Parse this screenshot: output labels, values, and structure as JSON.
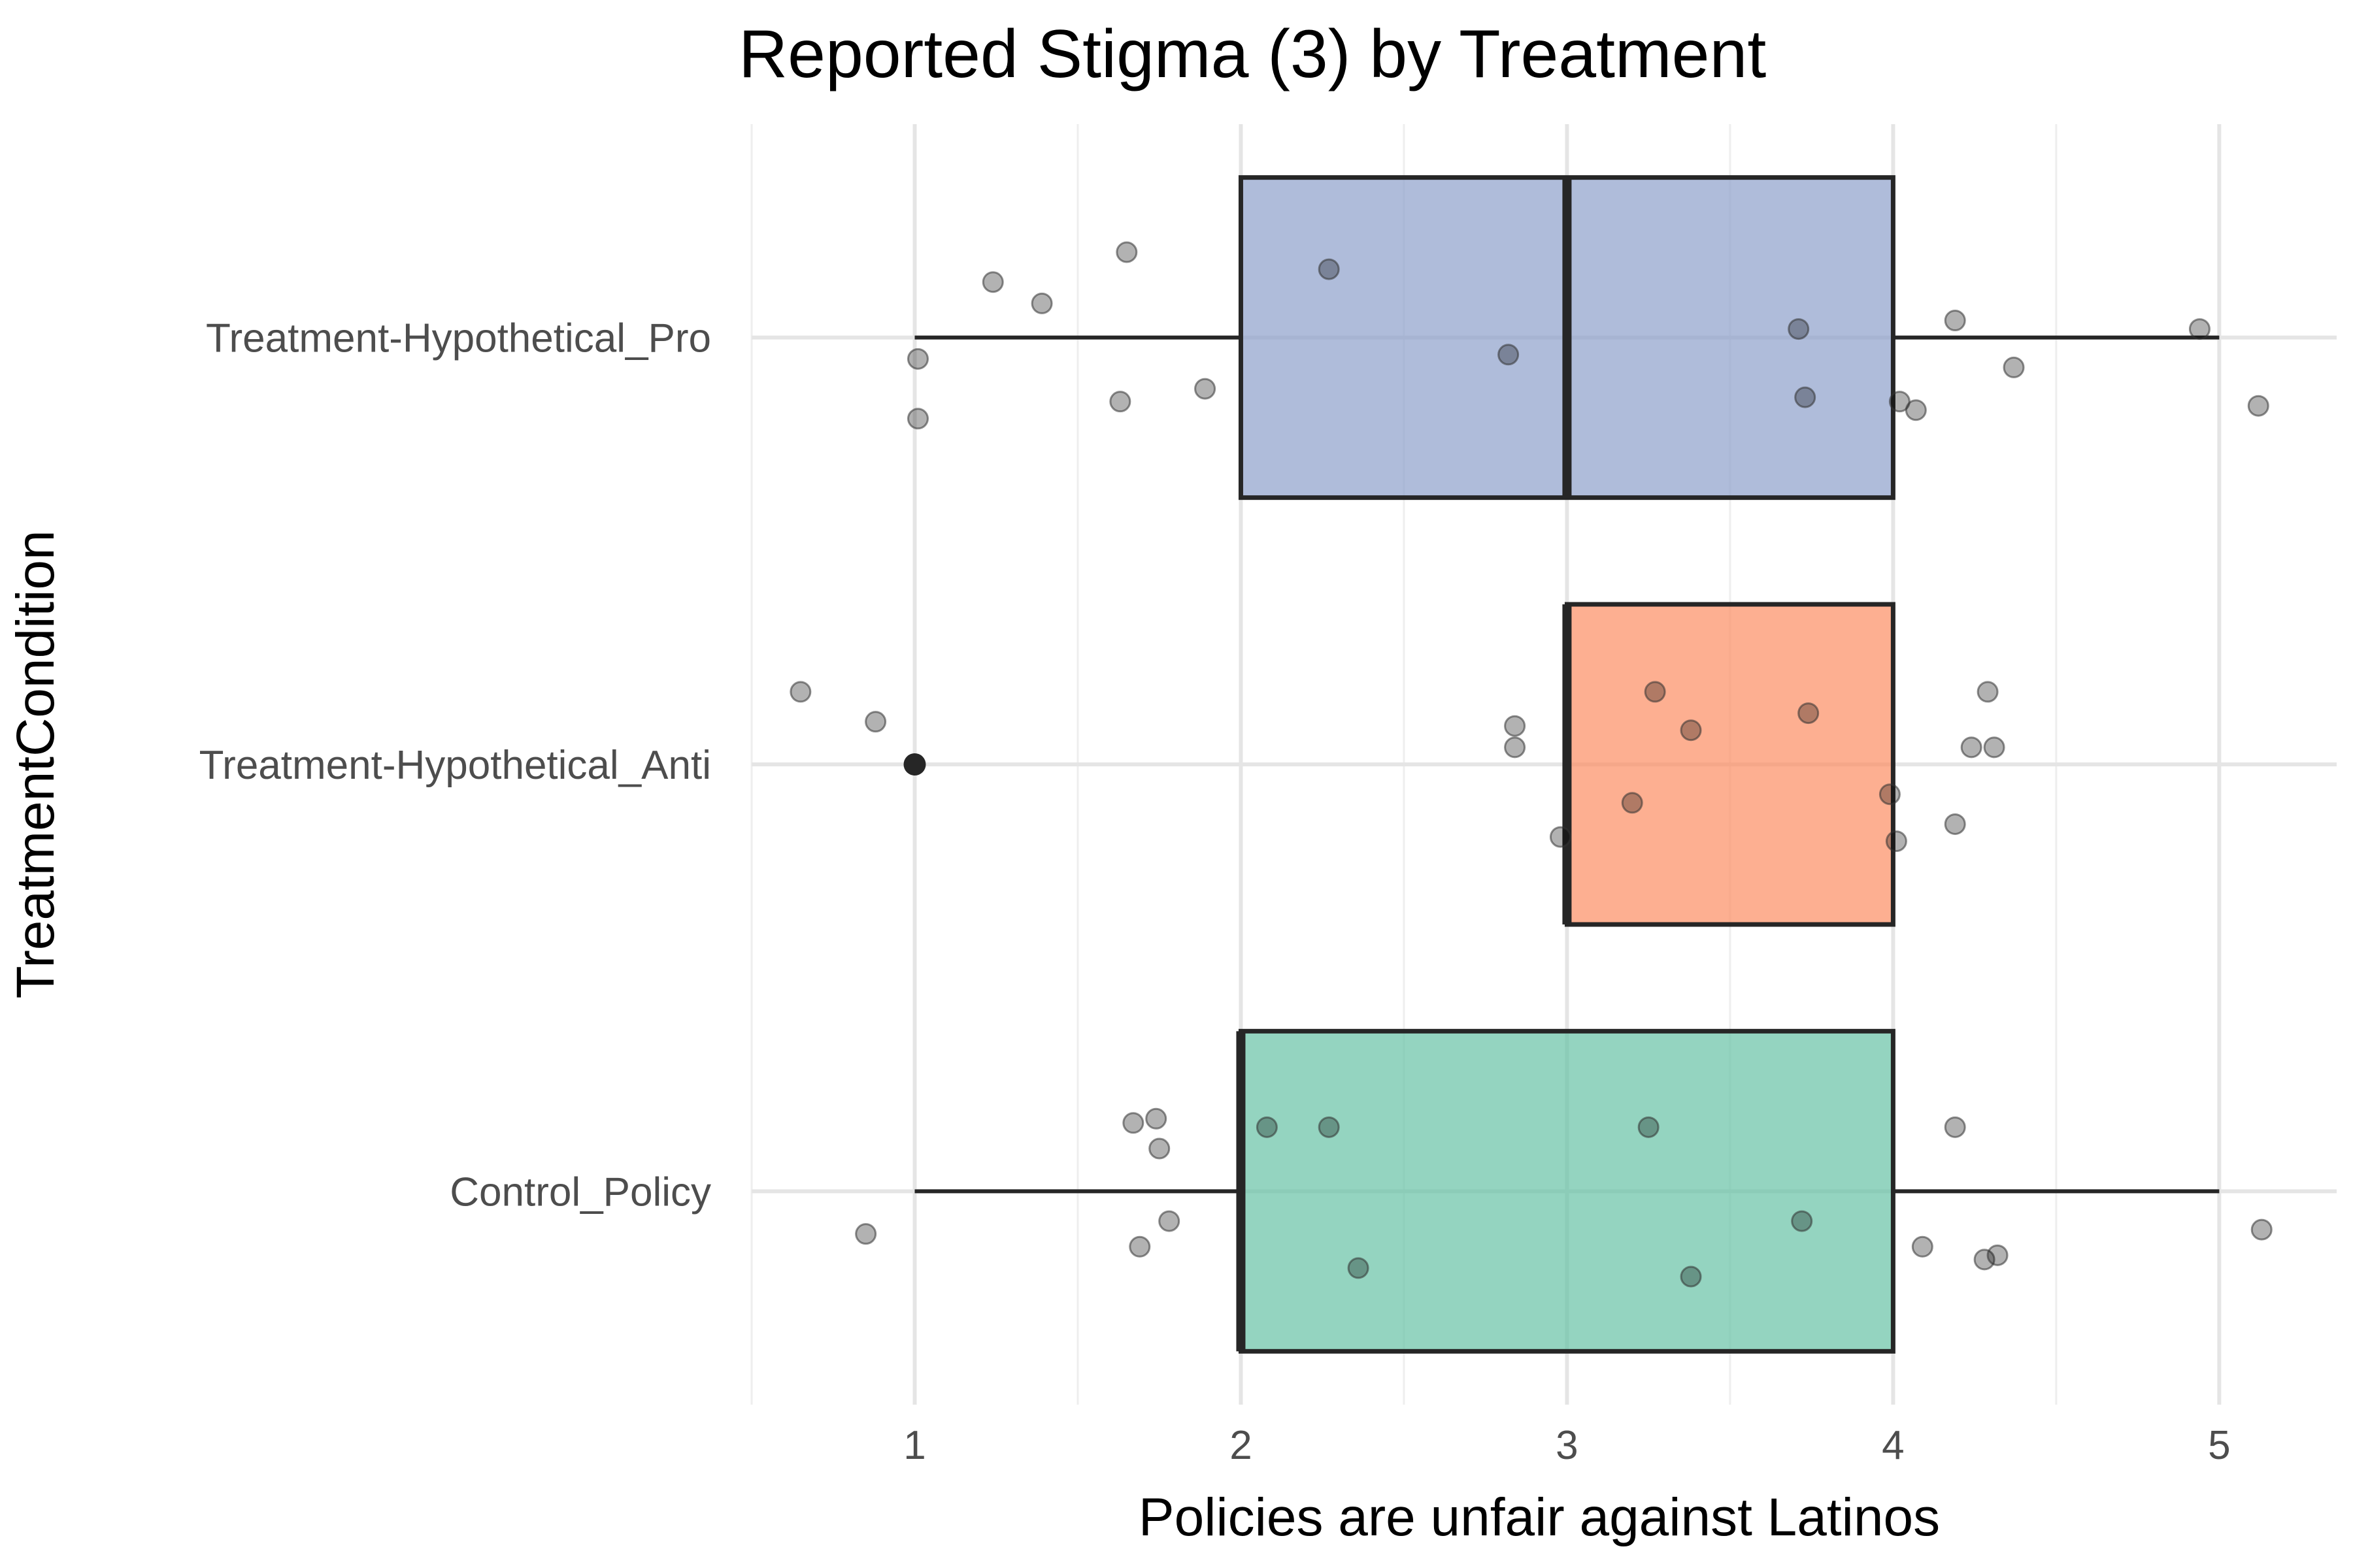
{
  "chart_data": {
    "type": "boxplot",
    "orientation": "horizontal",
    "title": "Reported Stigma (3) by Treatment",
    "xlabel": "Policies are unfair against Latinos",
    "ylabel": "TreatmentCondition",
    "xlim": [
      0.5,
      5.36
    ],
    "xticks": [
      1,
      2,
      3,
      4,
      5
    ],
    "grid": true,
    "legend": "none",
    "categories": [
      "Treatment-Hypothetical_Pro",
      "Treatment-Hypothetical_Anti",
      "Control_Policy"
    ],
    "series": [
      {
        "category": "Treatment-Hypothetical_Pro",
        "color": "#8da0cb",
        "whisker_low": 1,
        "q1": 2,
        "median": 3,
        "q3": 4,
        "whisker_high": 5,
        "outliers": [],
        "points": [
          {
            "x": 1.24,
            "y": 0.13
          },
          {
            "x": 1.39,
            "y": 0.08
          },
          {
            "x": 1.65,
            "y": 0.2
          },
          {
            "x": 2.27,
            "y": 0.16
          },
          {
            "x": 1.01,
            "y": -0.05
          },
          {
            "x": 1.01,
            "y": -0.19
          },
          {
            "x": 1.63,
            "y": -0.15
          },
          {
            "x": 1.89,
            "y": -0.12
          },
          {
            "x": 2.82,
            "y": -0.04
          },
          {
            "x": 3.71,
            "y": 0.02
          },
          {
            "x": 3.73,
            "y": -0.14
          },
          {
            "x": 4.19,
            "y": 0.04
          },
          {
            "x": 4.37,
            "y": -0.07
          },
          {
            "x": 4.02,
            "y": -0.15
          },
          {
            "x": 4.07,
            "y": -0.17
          },
          {
            "x": 4.94,
            "y": 0.02
          },
          {
            "x": 5.12,
            "y": -0.16
          }
        ]
      },
      {
        "category": "Treatment-Hypothetical_Anti",
        "color": "#fc8d62",
        "whisker_low": 3,
        "q1": 3,
        "median": 3,
        "q3": 4,
        "whisker_high": 4,
        "outliers": [
          1
        ],
        "points": [
          {
            "x": 0.65,
            "y": 0.17
          },
          {
            "x": 0.88,
            "y": 0.1
          },
          {
            "x": 2.84,
            "y": 0.09
          },
          {
            "x": 2.84,
            "y": 0.04
          },
          {
            "x": 2.98,
            "y": -0.17
          },
          {
            "x": 3.27,
            "y": 0.17
          },
          {
            "x": 3.38,
            "y": 0.08
          },
          {
            "x": 3.2,
            "y": -0.09
          },
          {
            "x": 3.74,
            "y": 0.12
          },
          {
            "x": 3.99,
            "y": -0.07
          },
          {
            "x": 4.01,
            "y": -0.18
          },
          {
            "x": 4.29,
            "y": 0.17
          },
          {
            "x": 4.24,
            "y": 0.04
          },
          {
            "x": 4.31,
            "y": 0.04
          },
          {
            "x": 4.19,
            "y": -0.14
          }
        ]
      },
      {
        "category": "Control_Policy",
        "color": "#66c2a5",
        "whisker_low": 1,
        "q1": 2,
        "median": 2,
        "q3": 4,
        "whisker_high": 5,
        "outliers": [],
        "points": [
          {
            "x": 1.67,
            "y": 0.16
          },
          {
            "x": 1.74,
            "y": 0.17
          },
          {
            "x": 1.75,
            "y": 0.1
          },
          {
            "x": 2.08,
            "y": 0.15
          },
          {
            "x": 2.27,
            "y": 0.15
          },
          {
            "x": 0.85,
            "y": -0.1
          },
          {
            "x": 1.78,
            "y": -0.07
          },
          {
            "x": 1.69,
            "y": -0.13
          },
          {
            "x": 2.36,
            "y": -0.18
          },
          {
            "x": 3.25,
            "y": 0.15
          },
          {
            "x": 3.38,
            "y": -0.2
          },
          {
            "x": 3.72,
            "y": -0.07
          },
          {
            "x": 4.19,
            "y": 0.15
          },
          {
            "x": 4.09,
            "y": -0.13
          },
          {
            "x": 4.28,
            "y": -0.16
          },
          {
            "x": 4.32,
            "y": -0.15
          },
          {
            "x": 5.13,
            "y": -0.09
          }
        ]
      }
    ]
  }
}
